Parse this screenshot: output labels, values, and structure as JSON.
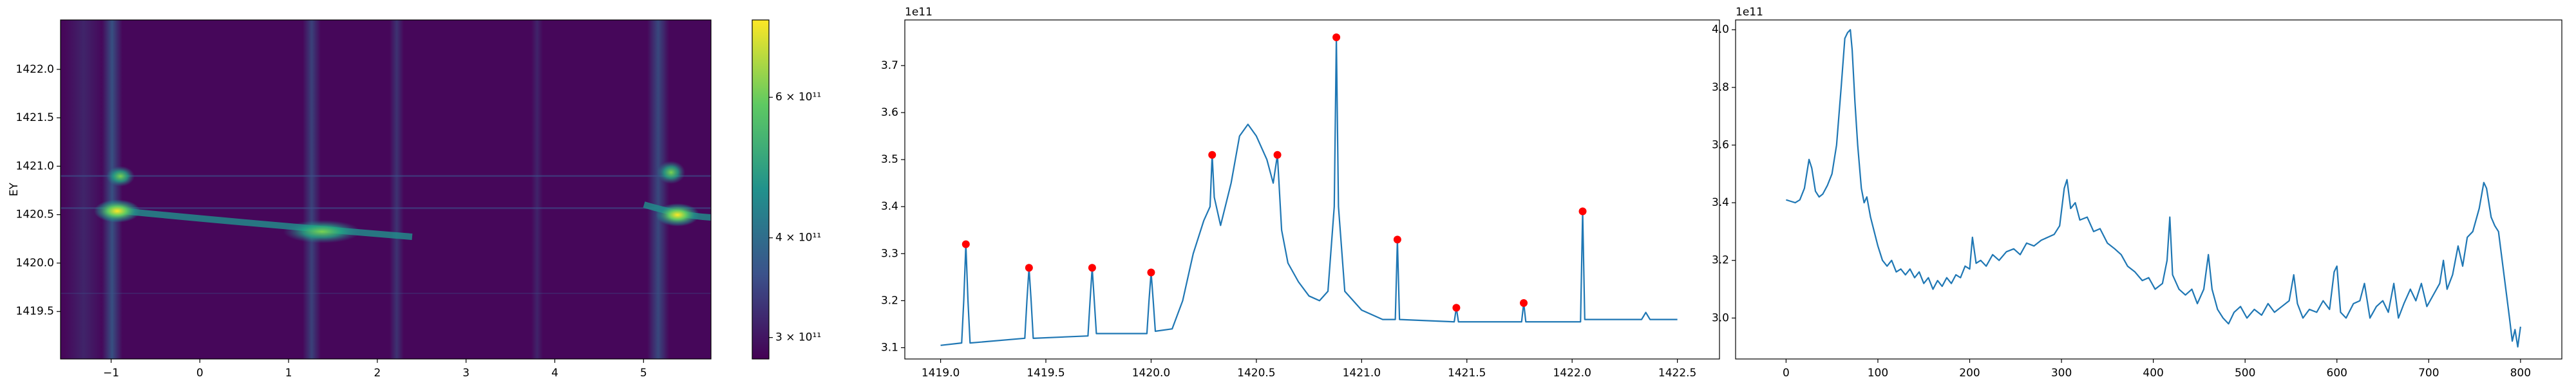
{
  "chart_data": [
    {
      "type": "heatmap",
      "ylabel": "EY",
      "xlim": [
        -1.57,
        5.76
      ],
      "xticks": [
        {
          "value": -1,
          "label": "−1"
        },
        0,
        1,
        2,
        3,
        4,
        5
      ],
      "ylim": [
        1419.01,
        1422.51
      ],
      "yticks": [
        1419.5,
        {
          "value": 1420,
          "label": "1420.0"
        },
        1420.5,
        {
          "value": 1421,
          "label": "1421.0"
        },
        1421.5,
        {
          "value": 1422,
          "label": "1422.0"
        }
      ],
      "colorbar": {
        "scale": "log",
        "lim": [
          282000000000,
          750000000000
        ],
        "ticks": [
          {
            "value": 300000000000,
            "label": "3 × 10¹¹"
          },
          {
            "value": 400000000000,
            "label": "4 × 10¹¹"
          },
          {
            "value": 600000000000,
            "label": "6 × 10¹¹"
          }
        ]
      }
    },
    {
      "type": "line",
      "y_offset_label": "1e11",
      "xlim": [
        1418.83,
        1422.7
      ],
      "xticks": [
        {
          "value": 1419,
          "label": "1419.0"
        },
        1419.5,
        {
          "value": 1420,
          "label": "1420.0"
        },
        1420.5,
        {
          "value": 1421,
          "label": "1421.0"
        },
        1421.5,
        {
          "value": 1422,
          "label": "1422.0"
        },
        1422.5
      ],
      "ylim": [
        3.076,
        3.797
      ],
      "yticks": [
        3.1,
        3.2,
        3.3,
        3.4,
        3.5,
        3.6,
        3.7
      ],
      "series": [
        {
          "color": "#1f77b4",
          "x": [
            1419.0,
            1419.1,
            1419.11,
            1419.12,
            1419.13,
            1419.14,
            1419.4,
            1419.41,
            1419.42,
            1419.43,
            1419.44,
            1419.7,
            1419.71,
            1419.72,
            1419.73,
            1419.74,
            1419.98,
            1419.99,
            1420.0,
            1420.01,
            1420.02,
            1420.1,
            1420.15,
            1420.2,
            1420.25,
            1420.28,
            1420.29,
            1420.3,
            1420.33,
            1420.38,
            1420.42,
            1420.46,
            1420.5,
            1420.55,
            1420.58,
            1420.6,
            1420.62,
            1420.65,
            1420.7,
            1420.75,
            1420.8,
            1420.84,
            1420.87,
            1420.88,
            1420.89,
            1420.92,
            1421.0,
            1421.1,
            1421.16,
            1421.17,
            1421.18,
            1421.44,
            1421.45,
            1421.46,
            1421.76,
            1421.77,
            1421.78,
            1422.04,
            1422.05,
            1422.06,
            1422.33,
            1422.35,
            1422.37,
            1422.5
          ],
          "values": [
            3.105,
            3.11,
            3.2,
            3.32,
            3.2,
            3.11,
            3.12,
            3.2,
            3.27,
            3.2,
            3.12,
            3.125,
            3.2,
            3.27,
            3.2,
            3.13,
            3.13,
            3.2,
            3.26,
            3.2,
            3.135,
            3.14,
            3.2,
            3.3,
            3.37,
            3.4,
            3.51,
            3.42,
            3.36,
            3.45,
            3.55,
            3.575,
            3.55,
            3.5,
            3.45,
            3.51,
            3.35,
            3.28,
            3.24,
            3.21,
            3.2,
            3.22,
            3.4,
            3.76,
            3.4,
            3.22,
            3.18,
            3.16,
            3.16,
            3.33,
            3.16,
            3.155,
            3.185,
            3.155,
            3.155,
            3.195,
            3.155,
            3.155,
            3.39,
            3.16,
            3.16,
            3.175,
            3.16,
            3.16
          ]
        },
        {
          "color": "#ff0000",
          "marker": "dot",
          "x": [
            1419.12,
            1419.42,
            1419.72,
            1420.0,
            1420.29,
            1420.6,
            1420.88,
            1421.17,
            1421.45,
            1421.77,
            1422.05
          ],
          "values": [
            3.32,
            3.27,
            3.27,
            3.26,
            3.51,
            3.51,
            3.76,
            3.33,
            3.185,
            3.195,
            3.39
          ]
        }
      ]
    },
    {
      "type": "line",
      "y_offset_label": "1e11",
      "xlim": [
        -55,
        845
      ],
      "xticks": [
        0,
        100,
        200,
        300,
        400,
        500,
        600,
        700,
        800
      ],
      "ylim": [
        2.858,
        4.034
      ],
      "yticks": [
        {
          "value": 3,
          "label": "3.0"
        },
        3.2,
        3.4,
        3.6,
        3.8,
        {
          "value": 4,
          "label": "4.0"
        }
      ],
      "series": [
        {
          "color": "#1f77b4",
          "x": [
            0,
            5,
            10,
            15,
            20,
            25,
            28,
            32,
            36,
            40,
            45,
            50,
            55,
            60,
            64,
            67,
            70,
            72,
            75,
            78,
            82,
            85,
            88,
            92,
            96,
            100,
            105,
            110,
            115,
            120,
            125,
            130,
            135,
            140,
            145,
            150,
            155,
            160,
            165,
            170,
            175,
            180,
            185,
            190,
            195,
            200,
            203,
            207,
            212,
            218,
            225,
            232,
            240,
            248,
            255,
            262,
            270,
            278,
            285,
            292,
            298,
            303,
            306,
            310,
            315,
            320,
            328,
            335,
            342,
            350,
            358,
            365,
            372,
            380,
            388,
            395,
            402,
            410,
            415,
            418,
            421,
            428,
            435,
            442,
            448,
            455,
            460,
            464,
            470,
            476,
            482,
            488,
            495,
            502,
            510,
            518,
            525,
            532,
            540,
            548,
            553,
            557,
            563,
            570,
            578,
            585,
            592,
            597,
            600,
            604,
            610,
            618,
            625,
            630,
            636,
            643,
            650,
            656,
            662,
            667,
            673,
            680,
            686,
            692,
            698,
            705,
            712,
            716,
            720,
            726,
            732,
            737,
            742,
            748,
            755,
            760,
            763,
            768,
            772,
            776,
            780,
            784,
            788,
            791,
            794,
            797,
            800
          ],
          "values": [
            3.41,
            3.405,
            3.4,
            3.41,
            3.45,
            3.55,
            3.52,
            3.44,
            3.42,
            3.43,
            3.46,
            3.5,
            3.6,
            3.8,
            3.97,
            3.99,
            4.0,
            3.93,
            3.75,
            3.6,
            3.45,
            3.4,
            3.42,
            3.35,
            3.3,
            3.25,
            3.2,
            3.18,
            3.2,
            3.16,
            3.17,
            3.15,
            3.17,
            3.14,
            3.16,
            3.12,
            3.14,
            3.1,
            3.13,
            3.11,
            3.14,
            3.12,
            3.15,
            3.14,
            3.18,
            3.17,
            3.28,
            3.19,
            3.2,
            3.18,
            3.22,
            3.2,
            3.23,
            3.24,
            3.22,
            3.26,
            3.25,
            3.27,
            3.28,
            3.29,
            3.32,
            3.45,
            3.48,
            3.38,
            3.4,
            3.34,
            3.35,
            3.3,
            3.31,
            3.26,
            3.24,
            3.22,
            3.18,
            3.16,
            3.13,
            3.14,
            3.1,
            3.12,
            3.2,
            3.35,
            3.15,
            3.1,
            3.08,
            3.1,
            3.05,
            3.1,
            3.22,
            3.1,
            3.03,
            3.0,
            2.98,
            3.02,
            3.04,
            3.0,
            3.03,
            3.01,
            3.05,
            3.02,
            3.04,
            3.06,
            3.15,
            3.05,
            3.0,
            3.03,
            3.02,
            3.06,
            3.03,
            3.16,
            3.18,
            3.02,
            3.0,
            3.05,
            3.06,
            3.12,
            3.0,
            3.04,
            3.06,
            3.02,
            3.12,
            3.0,
            3.05,
            3.1,
            3.06,
            3.12,
            3.04,
            3.08,
            3.12,
            3.2,
            3.1,
            3.15,
            3.25,
            3.18,
            3.28,
            3.3,
            3.38,
            3.47,
            3.45,
            3.35,
            3.32,
            3.3,
            3.2,
            3.1,
            3.0,
            2.92,
            2.96,
            2.9,
            2.97
          ]
        }
      ]
    }
  ]
}
